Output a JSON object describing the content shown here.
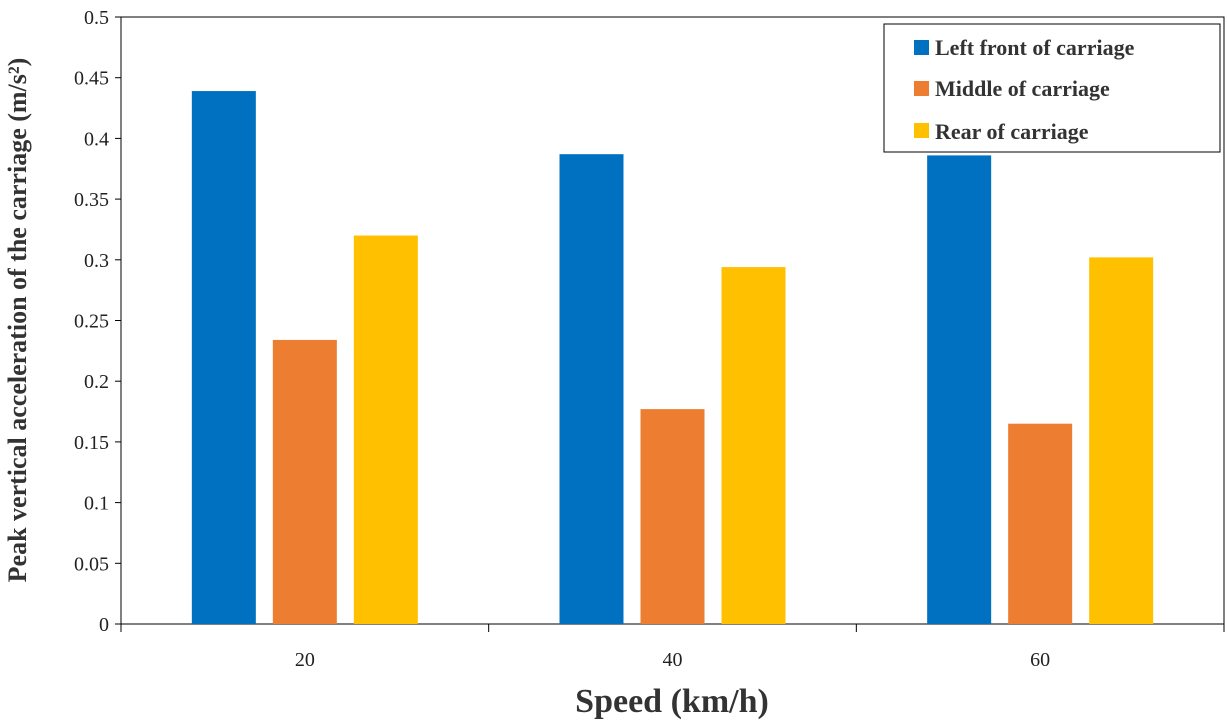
{
  "chart_data": {
    "type": "bar",
    "xlabel": "Speed (km/h)",
    "ylabel": "Peak vertical acceleration of the carriage (m/s²)",
    "categories": [
      "20",
      "40",
      "60"
    ],
    "series": [
      {
        "name": "Left front of carriage",
        "color": "#0070C0",
        "values": [
          0.439,
          0.387,
          0.386
        ]
      },
      {
        "name": "Middle of carriage",
        "color": "#ED7D31",
        "values": [
          0.234,
          0.177,
          0.165
        ]
      },
      {
        "name": "Rear of carriage",
        "color": "#FFC000",
        "values": [
          0.32,
          0.294,
          0.302
        ]
      }
    ],
    "ylim": [
      0,
      0.5
    ],
    "yticks": [
      "0",
      "0.05",
      "0.1",
      "0.15",
      "0.2",
      "0.25",
      "0.3",
      "0.35",
      "0.4",
      "0.45",
      "0.5"
    ],
    "grid": false,
    "legend_position": "top-right"
  }
}
